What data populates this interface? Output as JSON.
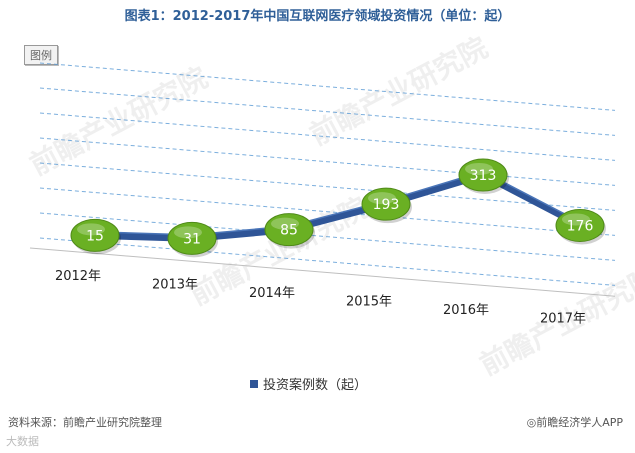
{
  "title": "图表1：2012-2017年中国互联网医疗领域投资情况（单位：起）",
  "legend_tag": "图例",
  "source_text": "资料来源：前瞻产业研究院整理",
  "credit_text": "◎前瞻经济学人APP",
  "bottom_logo": "大数据",
  "watermark": "前瞻产业研究院",
  "colors": {
    "title": "#2f5f98",
    "series": "#2f5597",
    "bubble": "#6ab023",
    "grid": "#5b9bd5"
  },
  "chart_data": {
    "type": "line",
    "title": "图表1：2012-2017年中国互联网医疗领域投资情况（单位：起）",
    "categories": [
      "2012年",
      "2013年",
      "2014年",
      "2015年",
      "2016年",
      "2017年"
    ],
    "series": [
      {
        "name": "投资案例数（起）",
        "values": [
          15,
          31,
          85,
          193,
          313,
          176
        ]
      }
    ],
    "ylim": [
      0,
      350
    ],
    "grid": true,
    "legend_position": "bottom"
  }
}
